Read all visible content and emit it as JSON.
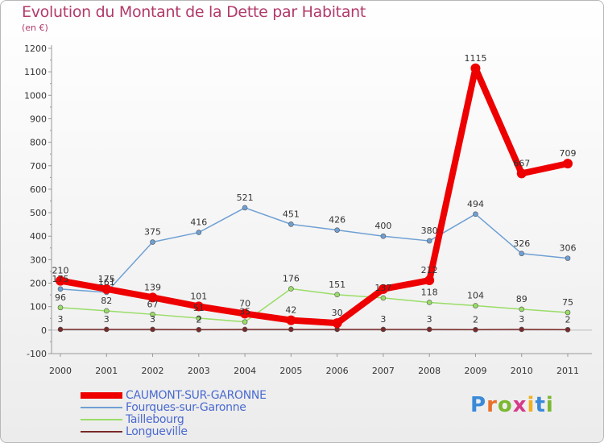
{
  "page": {
    "title": "Evolution du Montant de la Dette par Habitant",
    "subtitle": "(en €)"
  },
  "logo": {
    "text": "Proxiti",
    "letter_colors": [
      "#3a8ad8",
      "#e8702a",
      "#7ab830",
      "#d63a8a",
      "#f0b020",
      "#3a8ad8",
      "#7ab830"
    ]
  },
  "chart_data": {
    "type": "line",
    "title": "Evolution du Montant de la Dette par Habitant",
    "subtitle": "(en €)",
    "x": [
      "2000",
      "2001",
      "2002",
      "2003",
      "2004",
      "2005",
      "2006",
      "2007",
      "2008",
      "2009",
      "2010",
      "2011"
    ],
    "ylim": [
      -100,
      1200
    ],
    "yticks": [
      -100,
      0,
      100,
      200,
      300,
      400,
      500,
      600,
      700,
      800,
      900,
      1000,
      1100,
      1200
    ],
    "grid": false,
    "legend_position": "bottom-left",
    "series": [
      {
        "name": "CAUMONT-SUR-GARONNE",
        "color": "#ee0000",
        "values": [
          210,
          175,
          139,
          101,
          70,
          42,
          30,
          175,
          212,
          1115,
          667,
          709
        ],
        "labels": [
          "210",
          "175",
          "139",
          "101",
          "70",
          "42",
          "30",
          "",
          "212",
          "1115",
          "667",
          "709"
        ]
      },
      {
        "name": "Fourques-sur-Garonne",
        "color": "#6fa0d4",
        "values": [
          175,
          161,
          375,
          416,
          521,
          451,
          426,
          400,
          380,
          494,
          326,
          306
        ],
        "labels": [
          "175",
          "161",
          "375",
          "416",
          "521",
          "451",
          "426",
          "400",
          "380",
          "494",
          "326",
          "306"
        ]
      },
      {
        "name": "Taillebourg",
        "color": "#99dd66",
        "values": [
          96,
          82,
          67,
          51,
          35,
          176,
          151,
          137,
          118,
          104,
          89,
          75
        ],
        "labels": [
          "96",
          "82",
          "67",
          "51",
          "35",
          "176",
          "151",
          "137",
          "118",
          "104",
          "89",
          "75"
        ]
      },
      {
        "name": "Longueville",
        "color": "#7a2a2a",
        "values": [
          3,
          3,
          3,
          2,
          3,
          3,
          3,
          3,
          3,
          2,
          3,
          2
        ],
        "labels": [
          "3",
          "3",
          "3",
          "2",
          "",
          "",
          "",
          "3",
          "3",
          "2",
          "3",
          "2"
        ]
      }
    ]
  }
}
